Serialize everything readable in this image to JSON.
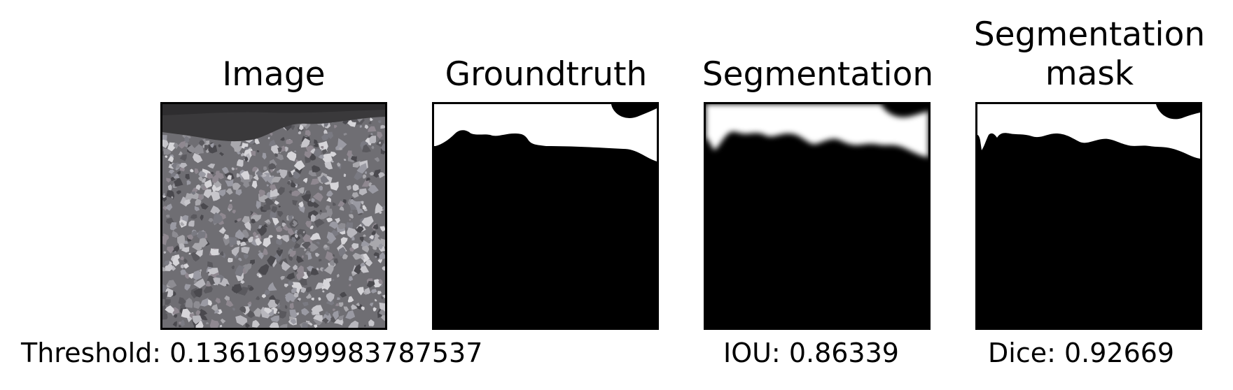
{
  "panels": [
    {
      "title": "Image"
    },
    {
      "title": "Groundtruth"
    },
    {
      "title": "Segmentation"
    },
    {
      "title": "Segmentation\nmask"
    }
  ],
  "captions": {
    "threshold": "Threshold: 0.13616999983787537",
    "iou": "IOU: 0.86339",
    "dice": "Dice: 0.92669"
  }
}
